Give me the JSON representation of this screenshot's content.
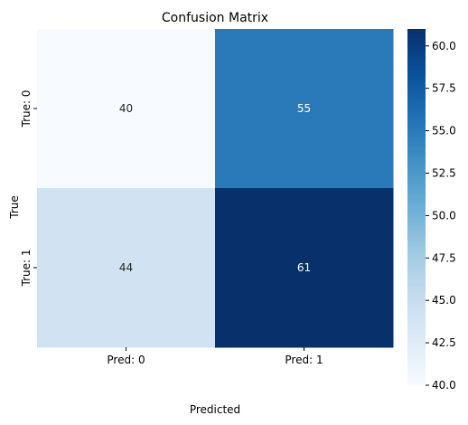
{
  "chart_data": {
    "type": "heatmap",
    "title": "Confusion Matrix",
    "xlabel": "Predicted",
    "ylabel": "True",
    "x_categories": [
      "Pred: 0",
      "Pred: 1"
    ],
    "y_categories": [
      "True: 0",
      "True: 1"
    ],
    "values": [
      [
        40,
        55
      ],
      [
        44,
        61
      ]
    ],
    "colormap": "Blues",
    "vmin": 40,
    "vmax": 61,
    "colorbar_ticks": [
      "40.0",
      "42.5",
      "45.0",
      "47.5",
      "50.0",
      "52.5",
      "55.0",
      "57.5",
      "60.0"
    ],
    "grid": false,
    "legend": "colorbar right"
  }
}
